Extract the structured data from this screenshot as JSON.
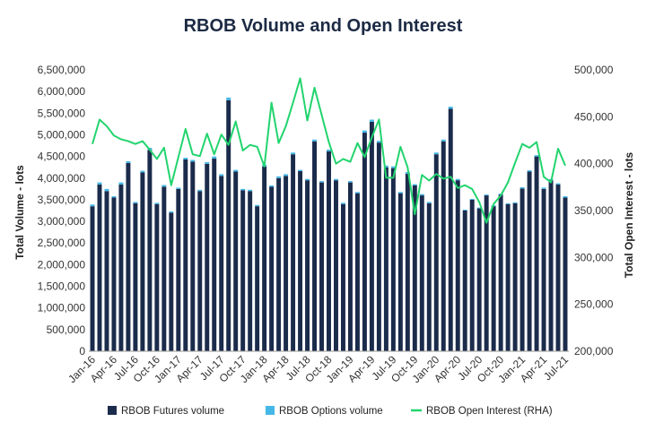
{
  "chart_data": {
    "type": "bar",
    "title": "RBOB Volume and Open Interest",
    "ylabel": "Total Volume - lots",
    "y2label": "Total Open Interest - lots",
    "ylim": [
      0,
      6500000
    ],
    "y2lim": [
      200000,
      500000
    ],
    "yticks": [
      "0",
      "500,000",
      "1,000,000",
      "1,500,000",
      "2,000,000",
      "2,500,000",
      "3,000,000",
      "3,500,000",
      "4,000,000",
      "4,500,000",
      "5,000,000",
      "5,500,000",
      "6,000,000",
      "6,500,000"
    ],
    "y2ticks": [
      "200,000",
      "250,000",
      "300,000",
      "350,000",
      "400,000",
      "450,000",
      "500,000"
    ],
    "xticks": [
      {
        "index": 0,
        "label": "Jan-16"
      },
      {
        "index": 3,
        "label": "Apr-16"
      },
      {
        "index": 6,
        "label": "Jul-16"
      },
      {
        "index": 9,
        "label": "Oct-16"
      },
      {
        "index": 12,
        "label": "Jan-17"
      },
      {
        "index": 15,
        "label": "Apr-17"
      },
      {
        "index": 18,
        "label": "Jul-17"
      },
      {
        "index": 21,
        "label": "Oct-17"
      },
      {
        "index": 24,
        "label": "Jan-18"
      },
      {
        "index": 27,
        "label": "Apr-18"
      },
      {
        "index": 30,
        "label": "Jul-18"
      },
      {
        "index": 33,
        "label": "Oct-18"
      },
      {
        "index": 36,
        "label": "Jan-19"
      },
      {
        "index": 39,
        "label": "Apr-19"
      },
      {
        "index": 42,
        "label": "Jul-19"
      },
      {
        "index": 45,
        "label": "Oct-19"
      },
      {
        "index": 48,
        "label": "Jan-20"
      },
      {
        "index": 51,
        "label": "Apr-20"
      },
      {
        "index": 54,
        "label": "Jul-20"
      },
      {
        "index": 57,
        "label": "Oct-20"
      },
      {
        "index": 60,
        "label": "Jan-21"
      },
      {
        "index": 63,
        "label": "Apr-21"
      },
      {
        "index": 66,
        "label": "Jul-21"
      }
    ],
    "categories": [
      "Jan-16",
      "Feb-16",
      "Mar-16",
      "Apr-16",
      "May-16",
      "Jun-16",
      "Jul-16",
      "Aug-16",
      "Sep-16",
      "Oct-16",
      "Nov-16",
      "Dec-16",
      "Jan-17",
      "Feb-17",
      "Mar-17",
      "Apr-17",
      "May-17",
      "Jun-17",
      "Jul-17",
      "Aug-17",
      "Sep-17",
      "Oct-17",
      "Nov-17",
      "Dec-17",
      "Jan-18",
      "Feb-18",
      "Mar-18",
      "Apr-18",
      "May-18",
      "Jun-18",
      "Jul-18",
      "Aug-18",
      "Sep-18",
      "Oct-18",
      "Nov-18",
      "Dec-18",
      "Jan-19",
      "Feb-19",
      "Mar-19",
      "Apr-19",
      "May-19",
      "Jun-19",
      "Jul-19",
      "Aug-19",
      "Sep-19",
      "Oct-19",
      "Nov-19",
      "Dec-19",
      "Jan-20",
      "Feb-20",
      "Mar-20",
      "Apr-20",
      "May-20",
      "Jun-20",
      "Jul-20",
      "Aug-20",
      "Sep-20",
      "Oct-20",
      "Nov-20",
      "Dec-20",
      "Jan-21",
      "Feb-21",
      "Mar-21",
      "Apr-21",
      "May-21",
      "Jun-21",
      "Jul-21"
    ],
    "series": [
      {
        "name": "RBOB Futures volume",
        "kind": "bar",
        "axis": "left",
        "color": "#1b2b4b",
        "values": [
          3350000,
          3850000,
          3700000,
          3550000,
          3850000,
          4350000,
          3420000,
          4130000,
          4650000,
          3400000,
          3800000,
          3200000,
          3750000,
          4430000,
          4380000,
          3700000,
          4330000,
          4450000,
          4050000,
          5800000,
          4150000,
          3720000,
          3700000,
          3350000,
          4270000,
          3800000,
          4000000,
          4050000,
          4550000,
          4160000,
          3950000,
          4850000,
          3900000,
          4620000,
          3950000,
          3400000,
          3900000,
          3650000,
          5050000,
          5300000,
          4820000,
          4250000,
          4230000,
          3650000,
          4100000,
          3830000,
          3600000,
          3420000,
          4550000,
          4850000,
          5600000,
          3950000,
          3250000,
          3500000,
          3300000,
          3600000,
          3350000,
          3620000,
          3400000,
          3420000,
          3760000,
          4150000,
          4500000,
          3750000,
          3950000,
          3850000,
          3550000
        ]
      },
      {
        "name": "RBOB Options volume",
        "kind": "bar-stack",
        "axis": "left",
        "color": "#45b8e8",
        "values": [
          40000,
          50000,
          50000,
          30000,
          50000,
          40000,
          30000,
          40000,
          50000,
          30000,
          40000,
          30000,
          30000,
          40000,
          40000,
          30000,
          40000,
          50000,
          40000,
          60000,
          40000,
          30000,
          30000,
          30000,
          40000,
          30000,
          40000,
          40000,
          40000,
          30000,
          30000,
          40000,
          30000,
          40000,
          30000,
          30000,
          30000,
          30000,
          50000,
          50000,
          40000,
          40000,
          40000,
          30000,
          40000,
          30000,
          30000,
          30000,
          40000,
          40000,
          50000,
          30000,
          20000,
          20000,
          20000,
          20000,
          20000,
          20000,
          20000,
          20000,
          30000,
          30000,
          30000,
          30000,
          30000,
          30000,
          30000
        ]
      },
      {
        "name": "RBOB Open Interest (RHA)",
        "kind": "line",
        "axis": "right",
        "color": "#22d46e",
        "values": [
          421000,
          447000,
          440000,
          430000,
          426000,
          424000,
          421000,
          424000,
          415000,
          405000,
          417000,
          377000,
          407000,
          437000,
          410000,
          408000,
          432000,
          410000,
          431000,
          420000,
          445000,
          414000,
          420000,
          418000,
          397000,
          465000,
          422000,
          440000,
          465000,
          491000,
          446000,
          481000,
          452000,
          423000,
          400000,
          405000,
          402000,
          422000,
          407000,
          428000,
          447000,
          385000,
          385000,
          418000,
          396000,
          346000,
          388000,
          382000,
          389000,
          384000,
          386000,
          374000,
          377000,
          373000,
          359000,
          337000,
          357000,
          366000,
          380000,
          401000,
          421000,
          417000,
          423000,
          386000,
          380000,
          416000,
          398000
        ]
      }
    ],
    "legend": [
      {
        "label": "RBOB Futures volume",
        "color": "#1b2b4b",
        "shape": "square"
      },
      {
        "label": "RBOB Options volume",
        "color": "#45b8e8",
        "shape": "square"
      },
      {
        "label": "RBOB Open Interest (RHA)",
        "color": "#22d46e",
        "shape": "line"
      }
    ],
    "legend_position": "bottom",
    "grid": false
  }
}
